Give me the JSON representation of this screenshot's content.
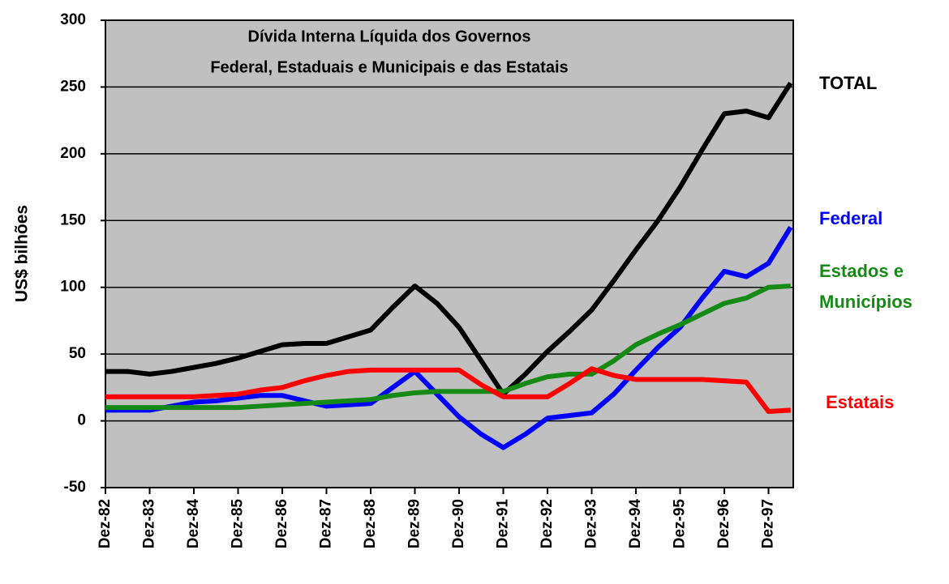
{
  "chart_data": {
    "type": "line",
    "title": "Dívida Interna Líquida dos Governos",
    "subtitle": "Federal, Estaduais e Municipais e das Estatais",
    "y_label": "US$ bilhões",
    "categories": [
      "Dez-82",
      null,
      "Dez-83",
      null,
      "Dez-84",
      null,
      "Dez-85",
      null,
      "Dez-86",
      null,
      "Dez-87",
      null,
      "Dez-88",
      null,
      "Dez-89",
      null,
      "Dez-90",
      null,
      "Dez-91",
      null,
      "Dez-92",
      null,
      "Dez-93",
      null,
      "Dez-94",
      null,
      "Dez-95",
      null,
      "Dez-96",
      null,
      "Dez-97",
      null
    ],
    "series": [
      {
        "name": "TOTAL",
        "color": "#000000",
        "values": [
          37,
          37,
          35,
          37,
          40,
          43,
          47,
          52,
          57,
          58,
          58,
          63,
          68,
          85,
          101,
          88,
          70,
          45,
          20,
          35,
          52,
          67,
          83,
          105,
          128,
          150,
          175,
          203,
          230,
          232,
          227,
          253
        ]
      },
      {
        "name": "Federal",
        "color": "#0000ff",
        "values": [
          8,
          8,
          8,
          11,
          14,
          15,
          17,
          19,
          19,
          15,
          11,
          12,
          13,
          25,
          37,
          20,
          3,
          -10,
          -20,
          -10,
          2,
          4,
          6,
          20,
          38,
          55,
          70,
          92,
          112,
          108,
          118,
          145
        ]
      },
      {
        "name": "Estados e Municípios",
        "color": "#158a15",
        "values": [
          10,
          10,
          10,
          10,
          10,
          10,
          10,
          11,
          12,
          13,
          14,
          15,
          16,
          19,
          21,
          22,
          22,
          22,
          22,
          28,
          33,
          35,
          35,
          45,
          57,
          65,
          72,
          80,
          88,
          92,
          100,
          101
        ]
      },
      {
        "name": "Estatais",
        "color": "#ff0000",
        "values": [
          18,
          18,
          18,
          18,
          18,
          19,
          20,
          23,
          25,
          30,
          34,
          37,
          38,
          38,
          38,
          38,
          38,
          27,
          18,
          18,
          18,
          28,
          39,
          34,
          31,
          31,
          31,
          31,
          30,
          29,
          7,
          8
        ]
      }
    ],
    "ylim": [
      -50,
      300
    ],
    "yticks": [
      -50,
      0,
      50,
      100,
      150,
      200,
      250,
      300
    ],
    "grid": true
  }
}
